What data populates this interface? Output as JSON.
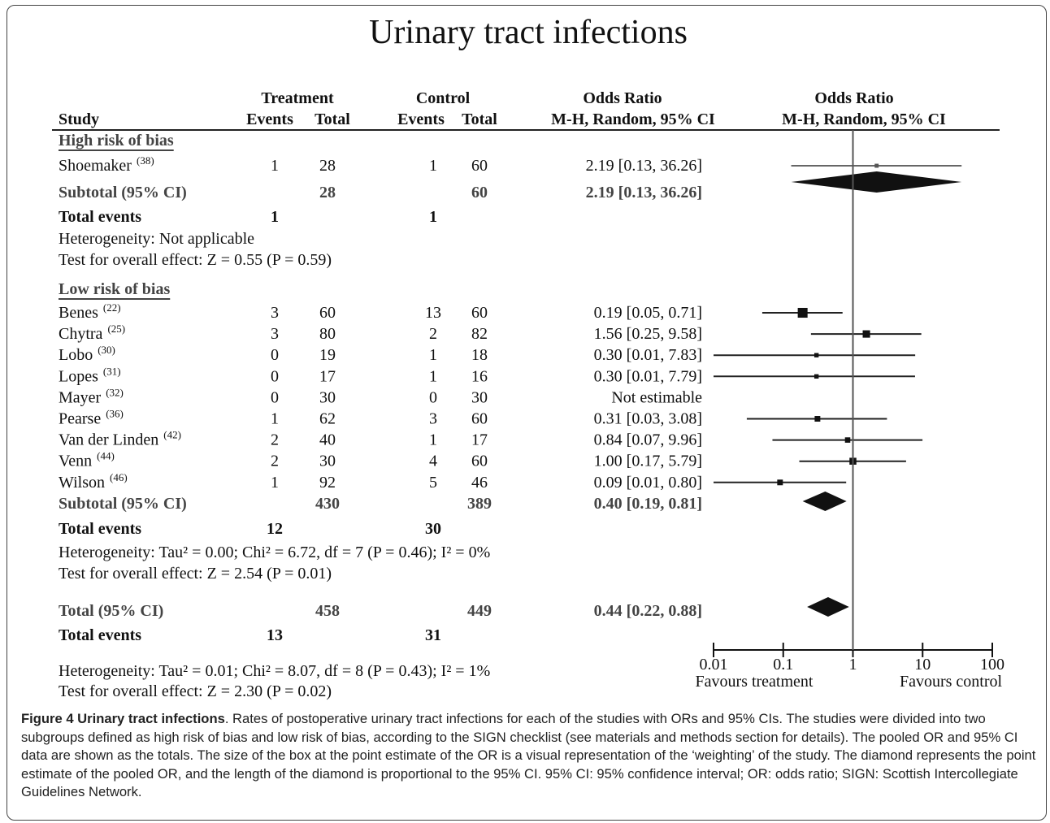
{
  "title": "Urinary tract infections",
  "headers": {
    "study": "Study",
    "treatment": "Treatment",
    "control": "Control",
    "events": "Events",
    "total": "Total",
    "or_text": "Odds Ratio",
    "or_text_sub": "M-H, Random, 95% CI",
    "or_plot": "Odds Ratio",
    "or_plot_sub": "M-H, Random, 95% CI"
  },
  "groups": [
    {
      "label": "High risk of bias",
      "studies": [
        {
          "name": "Shoemaker",
          "ref": "(38)",
          "t_events": "1",
          "t_total": "28",
          "c_events": "1",
          "c_total": "60",
          "or_label": "2.19 [0.13, 36.26]",
          "or": 2.19,
          "ci": [
            0.13,
            36.26
          ],
          "weight": 5
        }
      ],
      "subtotal": {
        "label": "Subtotal (95% CI)",
        "t_total": "28",
        "c_total": "60",
        "or_label": "2.19 [0.13, 36.26]",
        "or": 2.19,
        "ci": [
          0.13,
          36.26
        ]
      },
      "total_events": {
        "label": "Total events",
        "t": "1",
        "c": "1"
      },
      "heterogeneity": "Heterogeneity: Not applicable",
      "test": "Test for overall effect: Z = 0.55 (P = 0.59)"
    },
    {
      "label": "Low risk of bias",
      "studies": [
        {
          "name": "Benes",
          "ref": "(22)",
          "t_events": "3",
          "t_total": "60",
          "c_events": "13",
          "c_total": "60",
          "or_label": "0.19 [0.05, 0.71]",
          "or": 0.19,
          "ci": [
            0.05,
            0.71
          ],
          "weight": 30
        },
        {
          "name": "Chytra",
          "ref": "(25)",
          "t_events": "3",
          "t_total": "80",
          "c_events": "2",
          "c_total": "82",
          "or_label": "1.56 [0.25, 9.58]",
          "or": 1.56,
          "ci": [
            0.25,
            9.58
          ],
          "weight": 17
        },
        {
          "name": "Lobo",
          "ref": "(30)",
          "t_events": "0",
          "t_total": "19",
          "c_events": "1",
          "c_total": "18",
          "or_label": "0.30 [0.01, 7.83]",
          "or": 0.3,
          "ci": [
            0.01,
            7.83
          ],
          "weight": 6
        },
        {
          "name": "Lopes",
          "ref": "(31)",
          "t_events": "0",
          "t_total": "17",
          "c_events": "1",
          "c_total": "16",
          "or_label": "0.30 [0.01, 7.79]",
          "or": 0.3,
          "ci": [
            0.01,
            7.79
          ],
          "weight": 6
        },
        {
          "name": "Mayer",
          "ref": "(32)",
          "t_events": "0",
          "t_total": "30",
          "c_events": "0",
          "c_total": "30",
          "or_label": "Not estimable",
          "or": null,
          "ci": [
            null,
            null
          ],
          "weight": null
        },
        {
          "name": "Pearse",
          "ref": "(36)",
          "t_events": "1",
          "t_total": "62",
          "c_events": "3",
          "c_total": "60",
          "or_label": "0.31 [0.03, 3.08]",
          "or": 0.31,
          "ci": [
            0.03,
            3.08
          ],
          "weight": 10
        },
        {
          "name": "Van der Linden",
          "ref": "(42)",
          "t_events": "2",
          "t_total": "40",
          "c_events": "1",
          "c_total": "17",
          "or_label": "0.84 [0.07, 9.96]",
          "or": 0.84,
          "ci": [
            0.07,
            9.96
          ],
          "weight": 9
        },
        {
          "name": "Venn",
          "ref": "(44)",
          "t_events": "2",
          "t_total": "30",
          "c_events": "4",
          "c_total": "60",
          "or_label": "1.00 [0.17, 5.79]",
          "or": 1.0,
          "ci": [
            0.17,
            5.79
          ],
          "weight": 15
        },
        {
          "name": "Wilson",
          "ref": "(46)",
          "t_events": "1",
          "t_total": "92",
          "c_events": "5",
          "c_total": "46",
          "or_label": "0.09 [0.01, 0.80]",
          "or": 0.09,
          "ci": [
            0.01,
            0.8
          ],
          "weight": 10
        }
      ],
      "subtotal": {
        "label": "Subtotal (95% CI)",
        "t_total": "430",
        "c_total": "389",
        "or_label": "0.40 [0.19, 0.81]",
        "or": 0.4,
        "ci": [
          0.19,
          0.81
        ]
      },
      "total_events": {
        "label": "Total events",
        "t": "12",
        "c": "30"
      },
      "heterogeneity": "Heterogeneity: Tau² = 0.00; Chi² = 6.72, df = 7 (P = 0.46); I² = 0%",
      "test": "Test for overall effect: Z = 2.54 (P = 0.01)"
    }
  ],
  "overall": {
    "label": "Total (95% CI)",
    "t_total": "458",
    "c_total": "449",
    "or_label": "0.44 [0.22, 0.88]",
    "or": 0.44,
    "ci": [
      0.22,
      0.88
    ],
    "total_events": {
      "label": "Total events",
      "t": "13",
      "c": "31"
    },
    "heterogeneity": "Heterogeneity: Tau² = 0.01; Chi² = 8.07, df = 8 (P = 0.43); I² = 1%",
    "test": "Test for overall effect: Z = 2.30 (P = 0.02)"
  },
  "axis": {
    "log": true,
    "xlim": [
      0.01,
      100
    ],
    "xticks": [
      0.01,
      0.1,
      1,
      10,
      100
    ],
    "left_label": "Favours treatment",
    "right_label": "Favours control"
  },
  "caption": {
    "label": "Figure 4 Urinary tract infections",
    "text": ". Rates of postoperative urinary tract infections for each of the studies with ORs and 95% CIs. The studies were divided into two subgroups defined as high risk of bias and low risk of bias, according to the SIGN checklist (see materials and methods section for details). The pooled OR and 95% CI data are shown as the totals. The size of the box at the point estimate of the OR is a visual representation of the ‘weighting’ of the study. The diamond represents the point estimate of the pooled OR, and the length of the diamond is proportional to the 95% CI. 95% CI: 95% confidence interval; OR: odds ratio; SIGN: Scottish Intercollegiate Guidelines Network."
  }
}
